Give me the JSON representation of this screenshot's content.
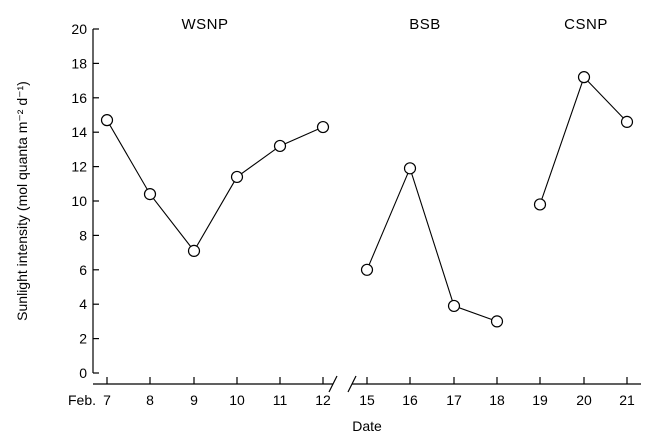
{
  "chart_data": {
    "type": "line",
    "ylabel": "Sunlight intensity (mol quanta m⁻² d⁻¹)",
    "xlabel": "Date",
    "ylim": [
      0,
      20
    ],
    "yticks": [
      0,
      2,
      4,
      6,
      8,
      10,
      12,
      14,
      16,
      18,
      20
    ],
    "x_prefix": "Feb.",
    "axis_break": "between 12 and 15",
    "series": [
      {
        "name": "WSNP",
        "x": [
          "7",
          "8",
          "9",
          "10",
          "11",
          "12"
        ],
        "values": [
          14.7,
          10.4,
          7.1,
          11.4,
          13.2,
          14.3
        ]
      },
      {
        "name": "BSB",
        "x": [
          "15",
          "16",
          "17",
          "18"
        ],
        "values": [
          6.0,
          11.9,
          3.9,
          3.0
        ]
      },
      {
        "name": "CSNP",
        "x": [
          "19",
          "20",
          "21"
        ],
        "values": [
          9.8,
          17.2,
          14.6
        ]
      }
    ]
  }
}
